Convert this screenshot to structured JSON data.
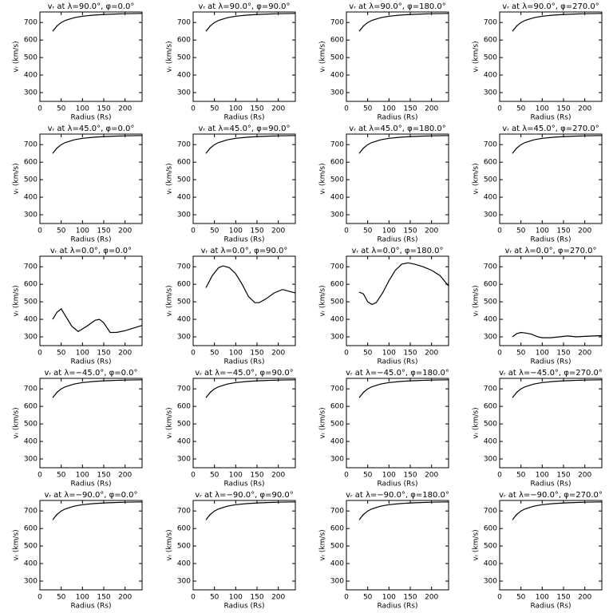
{
  "chart_data": [
    {
      "type": "line",
      "title": "vᵣ at λ=90.0°, φ=0.0°",
      "xlabel": "Radius (Rs)",
      "ylabel": "vᵣ (km/s)",
      "xlim": [
        0,
        240
      ],
      "ylim": [
        250,
        760
      ],
      "xticks": [
        0,
        50,
        100,
        150,
        200
      ],
      "yticks": [
        300,
        400,
        500,
        600,
        700
      ],
      "color": "#000000",
      "x": [
        30,
        40,
        50,
        60,
        80,
        100,
        125,
        150,
        175,
        200,
        240
      ],
      "values": [
        650,
        680,
        700,
        712,
        727,
        736,
        742,
        746,
        748,
        750,
        752
      ]
    },
    {
      "type": "line",
      "title": "vᵣ at λ=90.0°, φ=90.0°",
      "xlabel": "Radius (Rs)",
      "ylabel": "vᵣ (km/s)",
      "xlim": [
        0,
        240
      ],
      "ylim": [
        250,
        760
      ],
      "xticks": [
        0,
        50,
        100,
        150,
        200
      ],
      "yticks": [
        300,
        400,
        500,
        600,
        700
      ],
      "color": "#000000",
      "x": [
        30,
        40,
        50,
        60,
        80,
        100,
        125,
        150,
        175,
        200,
        240
      ],
      "values": [
        650,
        680,
        700,
        712,
        727,
        736,
        742,
        746,
        748,
        750,
        752
      ]
    },
    {
      "type": "line",
      "title": "vᵣ at λ=90.0°, φ=180.0°",
      "xlabel": "Radius (Rs)",
      "ylabel": "vᵣ (km/s)",
      "xlim": [
        0,
        240
      ],
      "ylim": [
        250,
        760
      ],
      "xticks": [
        0,
        50,
        100,
        150,
        200
      ],
      "yticks": [
        300,
        400,
        500,
        600,
        700
      ],
      "color": "#000000",
      "x": [
        30,
        40,
        50,
        60,
        80,
        100,
        125,
        150,
        175,
        200,
        240
      ],
      "values": [
        650,
        680,
        700,
        712,
        727,
        736,
        742,
        746,
        748,
        750,
        752
      ]
    },
    {
      "type": "line",
      "title": "vᵣ at λ=90.0°, φ=270.0°",
      "xlabel": "Radius (Rs)",
      "ylabel": "vᵣ (km/s)",
      "xlim": [
        0,
        240
      ],
      "ylim": [
        250,
        760
      ],
      "xticks": [
        0,
        50,
        100,
        150,
        200
      ],
      "yticks": [
        300,
        400,
        500,
        600,
        700
      ],
      "color": "#000000",
      "x": [
        30,
        40,
        50,
        60,
        80,
        100,
        125,
        150,
        175,
        200,
        240
      ],
      "values": [
        650,
        680,
        700,
        712,
        727,
        736,
        742,
        746,
        748,
        750,
        752
      ]
    },
    {
      "type": "line",
      "title": "vᵣ at λ=45.0°, φ=0.0°",
      "xlabel": "Radius (Rs)",
      "ylabel": "vᵣ (km/s)",
      "xlim": [
        0,
        240
      ],
      "ylim": [
        250,
        760
      ],
      "xticks": [
        0,
        50,
        100,
        150,
        200
      ],
      "yticks": [
        300,
        400,
        500,
        600,
        700
      ],
      "color": "#000000",
      "x": [
        30,
        40,
        50,
        60,
        80,
        100,
        125,
        150,
        175,
        200,
        240
      ],
      "values": [
        650,
        680,
        700,
        712,
        727,
        736,
        742,
        746,
        748,
        750,
        752
      ]
    },
    {
      "type": "line",
      "title": "vᵣ at λ=45.0°, φ=90.0°",
      "xlabel": "Radius (Rs)",
      "ylabel": "vᵣ (km/s)",
      "xlim": [
        0,
        240
      ],
      "ylim": [
        250,
        760
      ],
      "xticks": [
        0,
        50,
        100,
        150,
        200
      ],
      "yticks": [
        300,
        400,
        500,
        600,
        700
      ],
      "color": "#000000",
      "x": [
        30,
        40,
        50,
        60,
        80,
        100,
        125,
        150,
        175,
        200,
        240
      ],
      "values": [
        650,
        680,
        700,
        712,
        727,
        736,
        742,
        746,
        748,
        750,
        752
      ]
    },
    {
      "type": "line",
      "title": "vᵣ at λ=45.0°, φ=180.0°",
      "xlabel": "Radius (Rs)",
      "ylabel": "vᵣ (km/s)",
      "xlim": [
        0,
        240
      ],
      "ylim": [
        250,
        760
      ],
      "xticks": [
        0,
        50,
        100,
        150,
        200
      ],
      "yticks": [
        300,
        400,
        500,
        600,
        700
      ],
      "color": "#000000",
      "x": [
        30,
        40,
        50,
        60,
        80,
        100,
        125,
        150,
        175,
        200,
        240
      ],
      "values": [
        650,
        680,
        700,
        712,
        727,
        736,
        742,
        746,
        748,
        750,
        752
      ]
    },
    {
      "type": "line",
      "title": "vᵣ at λ=45.0°, φ=270.0°",
      "xlabel": "Radius (Rs)",
      "ylabel": "vᵣ (km/s)",
      "xlim": [
        0,
        240
      ],
      "ylim": [
        250,
        760
      ],
      "xticks": [
        0,
        50,
        100,
        150,
        200
      ],
      "yticks": [
        300,
        400,
        500,
        600,
        700
      ],
      "color": "#000000",
      "x": [
        30,
        40,
        50,
        60,
        80,
        100,
        125,
        150,
        175,
        200,
        240
      ],
      "values": [
        650,
        680,
        700,
        712,
        727,
        736,
        742,
        746,
        748,
        750,
        752
      ]
    },
    {
      "type": "line",
      "title": "vᵣ at λ=0.0°, φ=0.0°",
      "xlabel": "Radius (Rs)",
      "ylabel": "vᵣ (km/s)",
      "xlim": [
        0,
        240
      ],
      "ylim": [
        250,
        760
      ],
      "xticks": [
        0,
        50,
        100,
        150,
        200
      ],
      "yticks": [
        300,
        400,
        500,
        600,
        700
      ],
      "color": "#000000",
      "x": [
        30,
        40,
        50,
        60,
        75,
        90,
        110,
        130,
        140,
        150,
        165,
        180,
        200,
        240
      ],
      "values": [
        400,
        440,
        460,
        420,
        360,
        330,
        360,
        395,
        400,
        380,
        325,
        325,
        335,
        365
      ]
    },
    {
      "type": "line",
      "title": "vᵣ at λ=0.0°, φ=90.0°",
      "xlabel": "Radius (Rs)",
      "ylabel": "vᵣ (km/s)",
      "xlim": [
        0,
        240
      ],
      "ylim": [
        250,
        760
      ],
      "xticks": [
        0,
        50,
        100,
        150,
        200
      ],
      "yticks": [
        300,
        400,
        500,
        600,
        700
      ],
      "color": "#000000",
      "x": [
        30,
        45,
        60,
        70,
        85,
        100,
        115,
        130,
        145,
        155,
        170,
        190,
        210,
        240
      ],
      "values": [
        580,
        650,
        695,
        705,
        695,
        660,
        600,
        530,
        495,
        495,
        515,
        550,
        570,
        550
      ]
    },
    {
      "type": "line",
      "title": "vᵣ at λ=0.0°, φ=180.0°",
      "xlabel": "Radius (Rs)",
      "ylabel": "vᵣ (km/s)",
      "xlim": [
        0,
        240
      ],
      "ylim": [
        250,
        760
      ],
      "xticks": [
        0,
        50,
        100,
        150,
        200
      ],
      "yticks": [
        300,
        400,
        500,
        600,
        700
      ],
      "color": "#000000",
      "x": [
        30,
        40,
        50,
        60,
        70,
        85,
        100,
        115,
        130,
        145,
        160,
        180,
        200,
        220,
        240
      ],
      "values": [
        555,
        545,
        500,
        485,
        495,
        550,
        620,
        680,
        715,
        722,
        715,
        700,
        680,
        650,
        590
      ]
    },
    {
      "type": "line",
      "title": "vᵣ at λ=0.0°, φ=270.0°",
      "xlabel": "Radius (Rs)",
      "ylabel": "vᵣ (km/s)",
      "xlim": [
        0,
        240
      ],
      "ylim": [
        250,
        760
      ],
      "xticks": [
        0,
        50,
        100,
        150,
        200
      ],
      "yticks": [
        300,
        400,
        500,
        600,
        700
      ],
      "color": "#000000",
      "x": [
        30,
        40,
        50,
        60,
        75,
        90,
        100,
        120,
        140,
        160,
        180,
        200,
        240
      ],
      "values": [
        300,
        318,
        325,
        322,
        315,
        300,
        295,
        295,
        300,
        305,
        300,
        303,
        307
      ]
    },
    {
      "type": "line",
      "title": "vᵣ at λ=−45.0°, φ=0.0°",
      "xlabel": "Radius (Rs)",
      "ylabel": "vᵣ (km/s)",
      "xlim": [
        0,
        240
      ],
      "ylim": [
        250,
        760
      ],
      "xticks": [
        0,
        50,
        100,
        150,
        200
      ],
      "yticks": [
        300,
        400,
        500,
        600,
        700
      ],
      "color": "#000000",
      "x": [
        30,
        40,
        50,
        60,
        80,
        100,
        125,
        150,
        175,
        200,
        240
      ],
      "values": [
        650,
        680,
        700,
        712,
        727,
        736,
        742,
        746,
        748,
        750,
        752
      ]
    },
    {
      "type": "line",
      "title": "vᵣ at λ=−45.0°, φ=90.0°",
      "xlabel": "Radius (Rs)",
      "ylabel": "vᵣ (km/s)",
      "xlim": [
        0,
        240
      ],
      "ylim": [
        250,
        760
      ],
      "xticks": [
        0,
        50,
        100,
        150,
        200
      ],
      "yticks": [
        300,
        400,
        500,
        600,
        700
      ],
      "color": "#000000",
      "x": [
        30,
        40,
        50,
        60,
        80,
        100,
        125,
        150,
        175,
        200,
        240
      ],
      "values": [
        650,
        680,
        700,
        712,
        727,
        736,
        742,
        746,
        748,
        750,
        752
      ]
    },
    {
      "type": "line",
      "title": "vᵣ at λ=−45.0°, φ=180.0°",
      "xlabel": "Radius (Rs)",
      "ylabel": "vᵣ (km/s)",
      "xlim": [
        0,
        240
      ],
      "ylim": [
        250,
        760
      ],
      "xticks": [
        0,
        50,
        100,
        150,
        200
      ],
      "yticks": [
        300,
        400,
        500,
        600,
        700
      ],
      "color": "#000000",
      "x": [
        30,
        40,
        50,
        60,
        80,
        100,
        125,
        150,
        175,
        200,
        240
      ],
      "values": [
        650,
        680,
        700,
        712,
        727,
        736,
        742,
        746,
        748,
        750,
        752
      ]
    },
    {
      "type": "line",
      "title": "vᵣ at λ=−45.0°, φ=270.0°",
      "xlabel": "Radius (Rs)",
      "ylabel": "vᵣ (km/s)",
      "xlim": [
        0,
        240
      ],
      "ylim": [
        250,
        760
      ],
      "xticks": [
        0,
        50,
        100,
        150,
        200
      ],
      "yticks": [
        300,
        400,
        500,
        600,
        700
      ],
      "color": "#000000",
      "x": [
        30,
        40,
        50,
        60,
        80,
        100,
        125,
        150,
        175,
        200,
        240
      ],
      "values": [
        650,
        680,
        700,
        712,
        727,
        736,
        742,
        746,
        748,
        750,
        752
      ]
    },
    {
      "type": "line",
      "title": "vᵣ at λ=−90.0°, φ=0.0°",
      "xlabel": "Radius (Rs)",
      "ylabel": "vᵣ (km/s)",
      "xlim": [
        0,
        240
      ],
      "ylim": [
        250,
        760
      ],
      "xticks": [
        0,
        50,
        100,
        150,
        200
      ],
      "yticks": [
        300,
        400,
        500,
        600,
        700
      ],
      "color": "#000000",
      "x": [
        30,
        40,
        50,
        60,
        80,
        100,
        125,
        150,
        175,
        200,
        240
      ],
      "values": [
        650,
        680,
        700,
        712,
        727,
        736,
        742,
        746,
        748,
        750,
        752
      ]
    },
    {
      "type": "line",
      "title": "vᵣ at λ=−90.0°, φ=90.0°",
      "xlabel": "Radius (Rs)",
      "ylabel": "vᵣ (km/s)",
      "xlim": [
        0,
        240
      ],
      "ylim": [
        250,
        760
      ],
      "xticks": [
        0,
        50,
        100,
        150,
        200
      ],
      "yticks": [
        300,
        400,
        500,
        600,
        700
      ],
      "color": "#000000",
      "x": [
        30,
        40,
        50,
        60,
        80,
        100,
        125,
        150,
        175,
        200,
        240
      ],
      "values": [
        650,
        680,
        700,
        712,
        727,
        736,
        742,
        746,
        748,
        750,
        752
      ]
    },
    {
      "type": "line",
      "title": "vᵣ at λ=−90.0°, φ=180.0°",
      "xlabel": "Radius (Rs)",
      "ylabel": "vᵣ (km/s)",
      "xlim": [
        0,
        240
      ],
      "ylim": [
        250,
        760
      ],
      "xticks": [
        0,
        50,
        100,
        150,
        200
      ],
      "yticks": [
        300,
        400,
        500,
        600,
        700
      ],
      "color": "#000000",
      "x": [
        30,
        40,
        50,
        60,
        80,
        100,
        125,
        150,
        175,
        200,
        240
      ],
      "values": [
        650,
        680,
        700,
        712,
        727,
        736,
        742,
        746,
        748,
        750,
        752
      ]
    },
    {
      "type": "line",
      "title": "vᵣ at λ=−90.0°, φ=270.0°",
      "xlabel": "Radius (Rs)",
      "ylabel": "vᵣ (km/s)",
      "xlim": [
        0,
        240
      ],
      "ylim": [
        250,
        760
      ],
      "xticks": [
        0,
        50,
        100,
        150,
        200
      ],
      "yticks": [
        300,
        400,
        500,
        600,
        700
      ],
      "color": "#000000",
      "x": [
        30,
        40,
        50,
        60,
        80,
        100,
        125,
        150,
        175,
        200,
        240
      ],
      "values": [
        650,
        680,
        700,
        712,
        727,
        736,
        742,
        746,
        748,
        750,
        752
      ]
    }
  ]
}
